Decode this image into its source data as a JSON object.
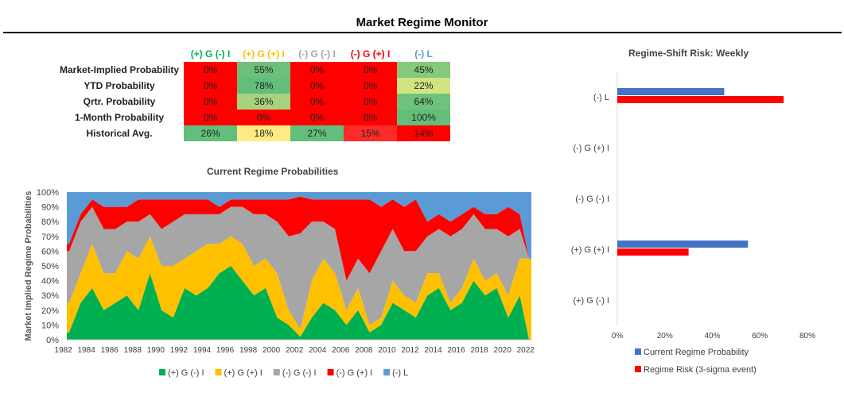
{
  "header": {
    "title": "Market Regime Monitor"
  },
  "table": {
    "columns": [
      {
        "label": "(+) G (-) I",
        "color": "#00b050"
      },
      {
        "label": "(+) G (+) I",
        "color": "#ffc000"
      },
      {
        "label": "(-) G (-) I",
        "color": "#a6a6a6"
      },
      {
        "label": "(-) G (+) I",
        "color": "#ff0000"
      },
      {
        "label": "(-) L",
        "color": "#5b9bd5"
      }
    ],
    "rows": [
      {
        "label": "Market-Implied Probability",
        "cells": [
          {
            "v": "0%",
            "bg": "#ff0000"
          },
          {
            "v": "55%",
            "bg": "#6cc07a"
          },
          {
            "v": "0%",
            "bg": "#ff0000"
          },
          {
            "v": "0%",
            "bg": "#ff0000"
          },
          {
            "v": "45%",
            "bg": "#85c97a"
          }
        ]
      },
      {
        "label": "YTD Probability",
        "cells": [
          {
            "v": "0%",
            "bg": "#ff0000"
          },
          {
            "v": "78%",
            "bg": "#63be7b"
          },
          {
            "v": "0%",
            "bg": "#ff0000"
          },
          {
            "v": "0%",
            "bg": "#ff0000"
          },
          {
            "v": "22%",
            "bg": "#d2e381"
          }
        ]
      },
      {
        "label": "Qrtr. Probability",
        "cells": [
          {
            "v": "0%",
            "bg": "#ff0000"
          },
          {
            "v": "36%",
            "bg": "#a6d47e"
          },
          {
            "v": "0%",
            "bg": "#ff0000"
          },
          {
            "v": "0%",
            "bg": "#ff0000"
          },
          {
            "v": "64%",
            "bg": "#6ec27c"
          }
        ]
      },
      {
        "label": "1-Month Probability",
        "cells": [
          {
            "v": "0%",
            "bg": "#ff0000"
          },
          {
            "v": "0%",
            "bg": "#ff0000"
          },
          {
            "v": "0%",
            "bg": "#ff0000"
          },
          {
            "v": "0%",
            "bg": "#ff0000"
          },
          {
            "v": "100%",
            "bg": "#63be7b"
          }
        ]
      },
      {
        "label": "Historical Avg.",
        "cells": [
          {
            "v": "26%",
            "bg": "#63be7b"
          },
          {
            "v": "18%",
            "bg": "#ffeb84"
          },
          {
            "v": "27%",
            "bg": "#63be7b"
          },
          {
            "v": "15%",
            "bg": "#ff2b2b"
          },
          {
            "v": "14%",
            "bg": "#ff0000"
          }
        ]
      }
    ]
  },
  "chart_data": [
    {
      "type": "area",
      "title": "Current Regime Probabilities",
      "ylabel": "Market Implied Regime Probabilities",
      "xlabel": "",
      "ylim": [
        0,
        1
      ],
      "yticks": [
        "0%",
        "10%",
        "20%",
        "30%",
        "40%",
        "50%",
        "60%",
        "70%",
        "80%",
        "90%",
        "100%"
      ],
      "xticks": [
        "1982",
        "1984",
        "1986",
        "1988",
        "1990",
        "1992",
        "1994",
        "1996",
        "1998",
        "2000",
        "2002",
        "2004",
        "2006",
        "2008",
        "2010",
        "2012",
        "2014",
        "2016",
        "2018",
        "2020",
        "2022"
      ],
      "xlim": [
        1982.3,
        2022.5
      ],
      "stacked": true,
      "legend_position": "bottom",
      "x": [
        1982.5,
        1983.5,
        1984.5,
        1985.5,
        1986.5,
        1987.5,
        1988.5,
        1989.5,
        1990.5,
        1991.5,
        1992.5,
        1993.5,
        1994.5,
        1995.5,
        1996.5,
        1997.5,
        1998.5,
        1999.5,
        2000.5,
        2001.5,
        2002.5,
        2003.5,
        2004.5,
        2005.5,
        2006.5,
        2007.5,
        2008.5,
        2009.5,
        2010.5,
        2011.5,
        2012.5,
        2013.5,
        2014.5,
        2015.5,
        2016.5,
        2017.5,
        2018.5,
        2019.5,
        2020.5,
        2021.5,
        2022.3
      ],
      "series": [
        {
          "name": "(+) G (-) I",
          "color": "#00b050",
          "values": [
            0.05,
            0.25,
            0.35,
            0.2,
            0.25,
            0.3,
            0.2,
            0.45,
            0.2,
            0.15,
            0.35,
            0.3,
            0.35,
            0.45,
            0.5,
            0.4,
            0.3,
            0.35,
            0.15,
            0.1,
            0.02,
            0.15,
            0.25,
            0.2,
            0.1,
            0.2,
            0.05,
            0.1,
            0.25,
            0.2,
            0.15,
            0.3,
            0.35,
            0.2,
            0.25,
            0.4,
            0.3,
            0.35,
            0.15,
            0.3,
            0.0
          ]
        },
        {
          "name": "(+) G (+) I",
          "color": "#ffc000",
          "values": [
            0.2,
            0.2,
            0.3,
            0.25,
            0.2,
            0.3,
            0.35,
            0.25,
            0.3,
            0.35,
            0.2,
            0.3,
            0.3,
            0.2,
            0.2,
            0.25,
            0.2,
            0.2,
            0.3,
            0.1,
            0.05,
            0.25,
            0.3,
            0.25,
            0.1,
            0.15,
            0.05,
            0.05,
            0.15,
            0.1,
            0.1,
            0.15,
            0.1,
            0.05,
            0.1,
            0.15,
            0.1,
            0.1,
            0.15,
            0.25,
            0.55
          ]
        },
        {
          "name": "(-) G (-) I",
          "color": "#a6a6a6",
          "values": [
            0.35,
            0.35,
            0.25,
            0.3,
            0.3,
            0.2,
            0.25,
            0.15,
            0.25,
            0.3,
            0.3,
            0.25,
            0.2,
            0.2,
            0.2,
            0.25,
            0.35,
            0.3,
            0.35,
            0.5,
            0.65,
            0.4,
            0.25,
            0.3,
            0.2,
            0.2,
            0.35,
            0.45,
            0.35,
            0.3,
            0.35,
            0.25,
            0.3,
            0.45,
            0.4,
            0.3,
            0.35,
            0.3,
            0.4,
            0.2,
            0.0
          ]
        },
        {
          "name": "(-) G (+) I",
          "color": "#ff0000",
          "values": [
            0.05,
            0.05,
            0.05,
            0.15,
            0.15,
            0.1,
            0.15,
            0.1,
            0.2,
            0.15,
            0.1,
            0.1,
            0.1,
            0.05,
            0.05,
            0.05,
            0.1,
            0.1,
            0.15,
            0.25,
            0.25,
            0.15,
            0.15,
            0.2,
            0.55,
            0.4,
            0.5,
            0.3,
            0.2,
            0.3,
            0.35,
            0.1,
            0.1,
            0.1,
            0.1,
            0.05,
            0.1,
            0.1,
            0.2,
            0.1,
            0.0
          ]
        },
        {
          "name": "(-) L",
          "color": "#5b9bd5",
          "values": [
            0.35,
            0.15,
            0.05,
            0.1,
            0.1,
            0.1,
            0.05,
            0.05,
            0.05,
            0.05,
            0.05,
            0.05,
            0.05,
            0.1,
            0.05,
            0.05,
            0.05,
            0.05,
            0.05,
            0.05,
            0.03,
            0.05,
            0.05,
            0.05,
            0.05,
            0.05,
            0.05,
            0.1,
            0.05,
            0.1,
            0.05,
            0.2,
            0.15,
            0.2,
            0.15,
            0.1,
            0.15,
            0.15,
            0.1,
            0.15,
            0.45
          ]
        }
      ]
    },
    {
      "type": "bar",
      "orientation": "horizontal",
      "title": "Regime-Shift Risk: Weekly",
      "categories": [
        "(-) L",
        "(-) G (+) I",
        "(-) G (-) I",
        "(+) G (+) I",
        "(+) G (-) I"
      ],
      "xlim": [
        0,
        0.8
      ],
      "xticks": [
        "0%",
        "20%",
        "40%",
        "60%",
        "80%"
      ],
      "legend_position": "bottom",
      "series": [
        {
          "name": "Current Regime Probability",
          "color": "#4472c4",
          "values": [
            0.45,
            0,
            0,
            0.55,
            0
          ]
        },
        {
          "name": "Regime Risk (3-sigma event)",
          "color": "#ff0000",
          "values": [
            0.7,
            0,
            0,
            0.3,
            0
          ]
        }
      ]
    }
  ]
}
